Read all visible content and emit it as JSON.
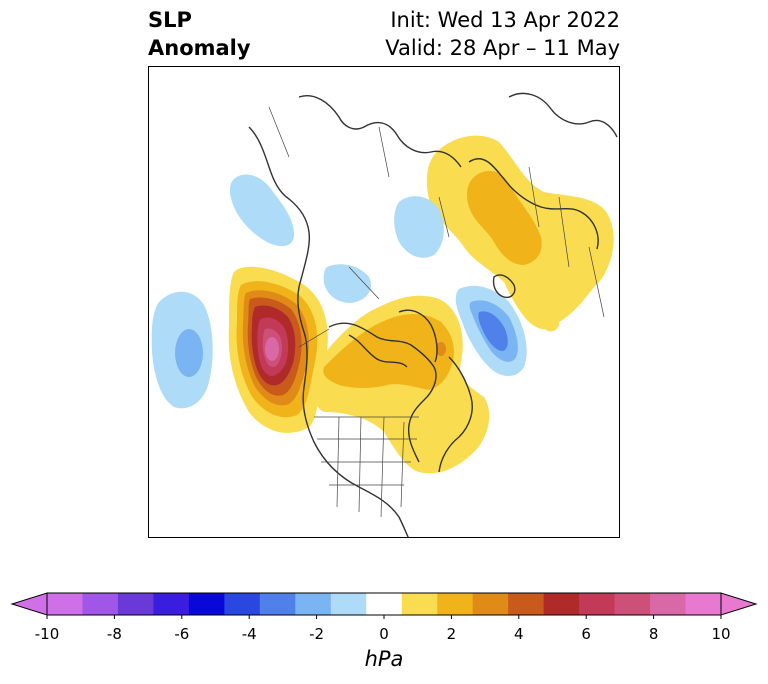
{
  "title": {
    "left_line1": "SLP",
    "left_line2": "Anomaly",
    "right_line1": "Init: Wed 13 Apr 2022",
    "right_line2": "Valid: 28 Apr – 11 May"
  },
  "colorbar": {
    "unit": "hPa",
    "tick_labels": [
      "-10",
      "-8",
      "-6",
      "-4",
      "-2",
      "0",
      "2",
      "4",
      "6",
      "8",
      "10"
    ],
    "extend": "both",
    "colors": [
      "#d070e8",
      "#a056e6",
      "#6a3ad8",
      "#3a1ee0",
      "#0808d8",
      "#2a48e0",
      "#5080ea",
      "#7ab4f2",
      "#aedcf8",
      "#ffffff",
      "#fadc50",
      "#f0b41a",
      "#e08a18",
      "#c85a1c",
      "#b02a2a",
      "#c23a58",
      "#cc5078",
      "#d868a6",
      "#e878d0"
    ]
  },
  "map": {
    "region": "North America / Northern Hemisphere polar stereographic",
    "features": [
      "coastlines",
      "country borders",
      "US state borders"
    ]
  }
}
